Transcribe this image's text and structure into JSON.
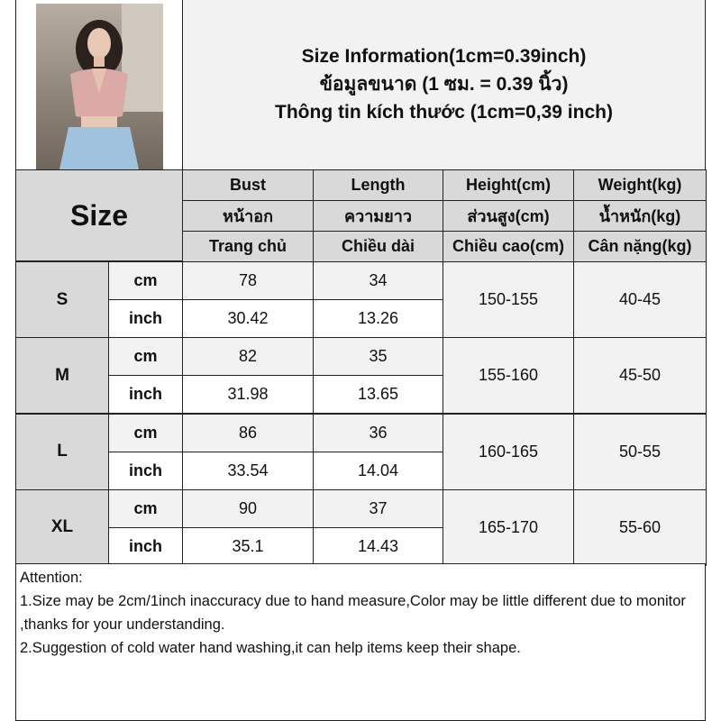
{
  "title": {
    "line1": "Size Information(1cm=0.39inch)",
    "line2": "ข้อมูลขนาด (1 ซม. = 0.39 นิ้ว)",
    "line3": "Thông tin kích thước (1cm=0,39 inch)"
  },
  "header": {
    "size_label": "Size",
    "columns": [
      {
        "en": "Bust",
        "th": "หน้าอก",
        "vi": "Trang chủ"
      },
      {
        "en": "Length",
        "th": "ความยาว",
        "vi": "Chiều dài"
      },
      {
        "en": "Height(cm)",
        "th": "ส่วนสูง(cm)",
        "vi": "Chiều cao(cm)"
      },
      {
        "en": "Weight(kg)",
        "th": "น้ำหนัก(kg)",
        "vi": "Cân nặng(kg)"
      }
    ]
  },
  "units": {
    "cm": "cm",
    "inch": "inch"
  },
  "rows": [
    {
      "size": "S",
      "cm": {
        "bust": "78",
        "length": "34"
      },
      "inch": {
        "bust": "30.42",
        "length": "13.26"
      },
      "height": "150-155",
      "weight": "40-45"
    },
    {
      "size": "M",
      "cm": {
        "bust": "82",
        "length": "35"
      },
      "inch": {
        "bust": "31.98",
        "length": "13.65"
      },
      "height": "155-160",
      "weight": "45-50"
    },
    {
      "size": "L",
      "cm": {
        "bust": "86",
        "length": "36"
      },
      "inch": {
        "bust": "33.54",
        "length": "14.04"
      },
      "height": "160-165",
      "weight": "50-55"
    },
    {
      "size": "XL",
      "cm": {
        "bust": "90",
        "length": "37"
      },
      "inch": {
        "bust": "35.1",
        "length": "14.43"
      },
      "height": "165-170",
      "weight": "55-60"
    }
  ],
  "notes": {
    "heading": "Attention:",
    "items": [
      "1.Size may be 2cm/1inch inaccuracy due to hand measure,Color may be little different due to monitor ,thanks for your understanding.",
      "2.Suggestion of cold water hand washing,it can help items keep their shape."
    ]
  }
}
